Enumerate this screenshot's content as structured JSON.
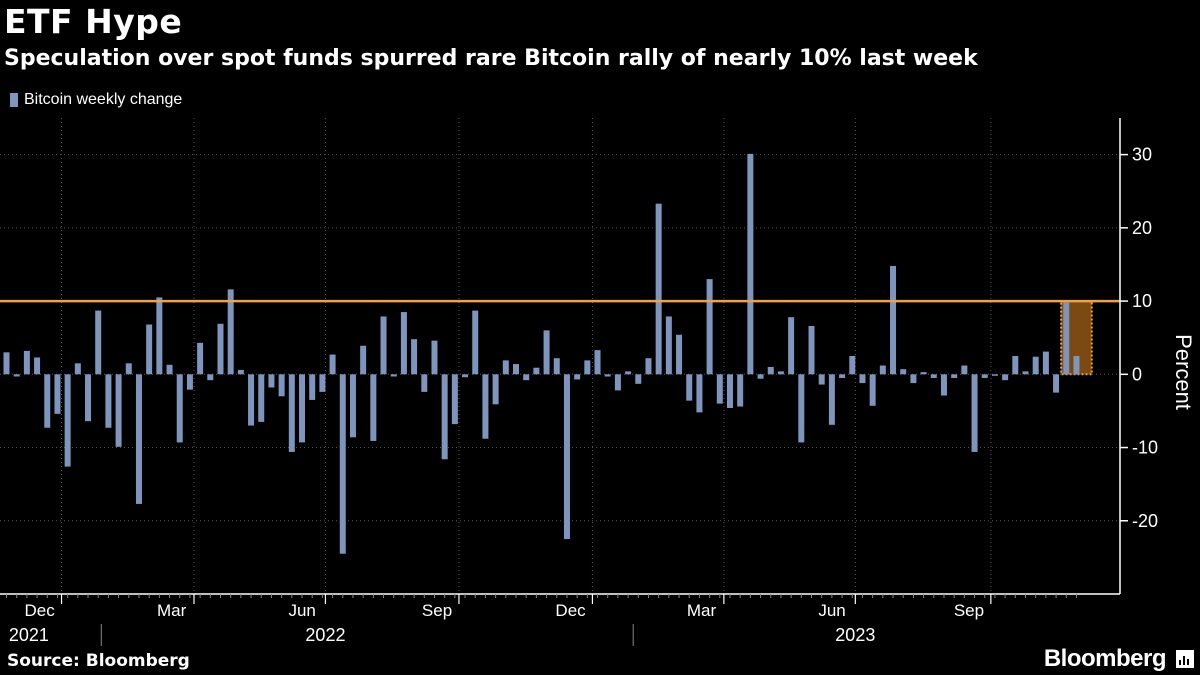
{
  "header": {
    "title": "ETF Hype",
    "subtitle": "Speculation over spot funds spurred rare Bitcoin rally of nearly 10% last week"
  },
  "footer": {
    "source": "Source: Bloomberg",
    "brand": "Bloomberg"
  },
  "colors": {
    "bar": "#7e95bd",
    "reference_line": "#f5a03a",
    "highlight_fill": "#7a4a12",
    "highlight_border": "#f5a03a",
    "grid": "#555555"
  },
  "chart_data": {
    "type": "bar",
    "title": "ETF Hype",
    "subtitle": "Speculation over spot funds spurred rare Bitcoin rally of nearly 10% last week",
    "legend": "top-left",
    "ylabel": "Percent",
    "ylim": [
      -30,
      35
    ],
    "yticks": [
      -20,
      -10,
      0,
      10,
      20,
      30
    ],
    "reference_line": 10,
    "grid": true,
    "series": [
      {
        "name": "Bitcoin weekly change",
        "values": [
          3.0,
          -0.3,
          3.2,
          2.3,
          -7.3,
          -5.4,
          -12.6,
          1.5,
          -6.4,
          8.7,
          -7.3,
          -9.9,
          1.5,
          -17.7,
          6.8,
          10.5,
          1.3,
          -9.3,
          -2.1,
          4.3,
          -0.8,
          6.9,
          11.6,
          0.6,
          -7.0,
          -6.5,
          -1.8,
          -3.0,
          -10.6,
          -9.3,
          -3.5,
          -2.4,
          2.7,
          -24.5,
          -8.6,
          3.9,
          -9.1,
          7.9,
          -0.3,
          8.5,
          4.8,
          -2.4,
          4.6,
          -11.6,
          -6.8,
          -0.4,
          8.7,
          -8.8,
          -4.1,
          1.9,
          1.4,
          -0.8,
          0.9,
          6.0,
          2.2,
          -22.5,
          -0.7,
          1.9,
          3.3,
          -0.3,
          -2.2,
          0.4,
          -1.3,
          2.2,
          23.3,
          7.9,
          5.4,
          -3.6,
          -5.2,
          13.0,
          -4.0,
          -4.6,
          -4.4,
          30.1,
          -0.6,
          1.0,
          0.4,
          7.8,
          -9.3,
          6.6,
          -1.4,
          -6.9,
          -0.5,
          2.5,
          -1.2,
          -4.3,
          1.2,
          14.8,
          0.7,
          -1.2,
          0.3,
          -0.5,
          -2.9,
          -0.5,
          1.2,
          -10.6,
          -0.5,
          -0.2,
          -0.8,
          2.5,
          0.4,
          2.4,
          3.1,
          -2.5,
          9.8,
          2.5
        ]
      }
    ],
    "x_start": "2021-10-25",
    "x_interval": "weekly",
    "month_ticks": [
      "Dec",
      "Mar",
      "Jun",
      "Sep",
      "Dec",
      "Mar",
      "Jun",
      "Sep"
    ],
    "month_tick_weeks": [
      5.4,
      18.4,
      31.3,
      44.4,
      57.5,
      70.4,
      83.3,
      96.6
    ],
    "year_ticks": [
      "2021",
      "2022",
      "2023"
    ],
    "year_tick_weeks": [
      2.2,
      31.3,
      83.3
    ],
    "year_boundary_weeks": [
      9.3,
      61.5
    ],
    "highlight_range": [
      103.5,
      106.5
    ]
  }
}
